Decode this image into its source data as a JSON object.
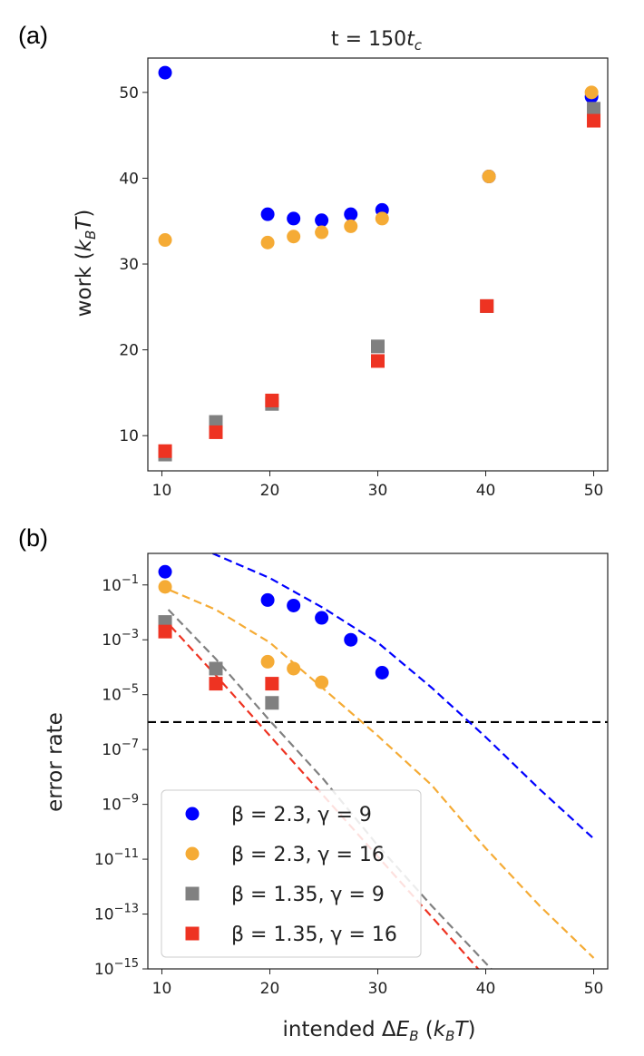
{
  "chart_data": [
    {
      "panel": "(a)",
      "type": "scatter",
      "title": "t = 150t_c",
      "xlabel": "",
      "ylabel": "work (k_BT)",
      "xlim": [
        8.7,
        51.3
      ],
      "ylim": [
        5.9,
        54.0
      ],
      "xticks": [
        10,
        20,
        30,
        40,
        50
      ],
      "yticks": [
        10,
        20,
        30,
        40,
        50
      ],
      "grid": false,
      "series": [
        {
          "name": "β = 2.3, γ = 9",
          "marker": "circle",
          "color": "#0000ff",
          "x": [
            10.3,
            19.8,
            22.2,
            24.8,
            27.5,
            30.4,
            40.3,
            49.8
          ],
          "y": [
            52.3,
            35.8,
            35.3,
            35.1,
            35.8,
            36.3,
            40.2,
            49.5
          ]
        },
        {
          "name": "β = 2.3, γ = 16",
          "marker": "circle",
          "color": "#f5ab35",
          "x": [
            10.3,
            19.8,
            22.2,
            24.8,
            27.5,
            30.4,
            40.3,
            49.8
          ],
          "y": [
            32.8,
            32.5,
            33.2,
            33.7,
            34.4,
            35.3,
            40.2,
            50.0
          ]
        },
        {
          "name": "β = 1.35, γ = 9",
          "marker": "square",
          "color": "#808080",
          "x": [
            10.3,
            15.0,
            20.2,
            30.0,
            40.1,
            50.0
          ],
          "y": [
            7.8,
            11.6,
            13.7,
            20.4,
            25.1,
            48.1
          ]
        },
        {
          "name": "β = 1.35, γ = 16",
          "marker": "square",
          "color": "#ee3322",
          "x": [
            10.3,
            15.0,
            20.2,
            30.0,
            40.1,
            50.0
          ],
          "y": [
            8.2,
            10.4,
            14.1,
            18.7,
            25.1,
            46.7
          ]
        }
      ]
    },
    {
      "panel": "(b)",
      "type": "scatter",
      "title": "",
      "xlabel": "intended ΔE_B (k_BT)",
      "ylabel": "error rate",
      "xlim": [
        8.7,
        51.3
      ],
      "yscale": "log",
      "ylim_exp": [
        -15,
        0.15
      ],
      "xticks": [
        10,
        20,
        30,
        40,
        50
      ],
      "ytick_exponents": [
        -1,
        -3,
        -5,
        -7,
        -9,
        -11,
        -13,
        -15
      ],
      "grid": false,
      "legend": "lower-left",
      "threshold_exp": -6,
      "series": [
        {
          "name": "β = 2.3, γ = 9",
          "marker": "circle",
          "color": "#0000ff",
          "x": [
            10.3,
            19.8,
            22.2,
            24.8,
            27.5,
            30.4
          ],
          "y_exp": [
            -0.52,
            -1.55,
            -1.75,
            -2.2,
            -3.0,
            -4.2
          ],
          "fit": {
            "x": [
              14.7,
              20,
              25,
              30,
              35,
              40,
              45,
              50
            ],
            "y_exp": [
              0.15,
              -0.75,
              -1.85,
              -3.1,
              -4.75,
              -6.55,
              -8.45,
              -10.25
            ]
          }
        },
        {
          "name": "β = 2.3, γ = 16",
          "marker": "circle",
          "color": "#f5ab35",
          "x": [
            10.3,
            19.8,
            22.2,
            24.8
          ],
          "y_exp": [
            -1.07,
            -3.8,
            -4.05,
            -4.55
          ],
          "fit": {
            "x": [
              10.8,
              15,
              20,
              25,
              30,
              35,
              40,
              45,
              50
            ],
            "y_exp": [
              -1.2,
              -1.9,
              -3.1,
              -4.8,
              -6.5,
              -8.3,
              -10.6,
              -12.7,
              -14.6
            ]
          }
        },
        {
          "name": "β = 1.35, γ = 9",
          "marker": "square",
          "color": "#808080",
          "x": [
            10.3,
            15.0,
            20.2
          ],
          "y_exp": [
            -2.35,
            -4.05,
            -5.3
          ],
          "fit": {
            "x": [
              10.6,
              15,
              20,
              25,
              30,
              35,
              40.5
            ],
            "y_exp": [
              -1.9,
              -3.7,
              -5.95,
              -8.1,
              -10.5,
              -12.7,
              -15.0
            ]
          }
        },
        {
          "name": "β = 1.35, γ = 16",
          "marker": "square",
          "color": "#ee3322",
          "x": [
            10.3,
            15.0,
            20.2
          ],
          "y_exp": [
            -2.7,
            -4.6,
            -4.6
          ],
          "fit": {
            "x": [
              10.8,
              15,
              20,
              25,
              30,
              35,
              39.3
            ],
            "y_exp": [
              -2.5,
              -4.3,
              -6.5,
              -8.7,
              -10.9,
              -13.1,
              -15.0
            ]
          }
        }
      ]
    }
  ]
}
